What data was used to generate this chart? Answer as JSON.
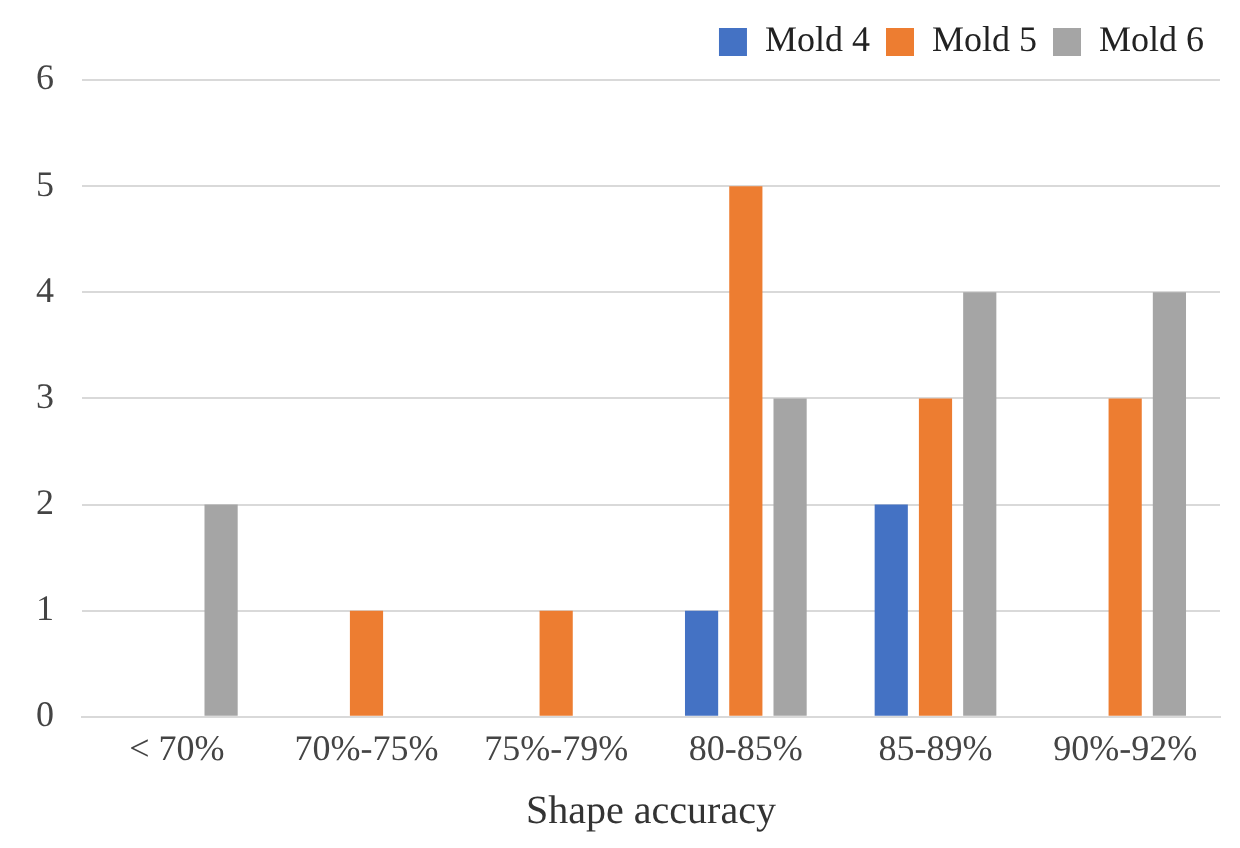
{
  "chart_data": {
    "type": "bar",
    "xlabel": "Shape accuracy",
    "categories": [
      "< 70%",
      "70%-75%",
      "75%-79%",
      "80-85%",
      "85-89%",
      "90%-92%"
    ],
    "series": [
      {
        "name": "Mold 4",
        "color": "#4472c4",
        "values": [
          0,
          0,
          0,
          1,
          2,
          0
        ]
      },
      {
        "name": "Mold 5",
        "color": "#ed7d31",
        "values": [
          0,
          1,
          1,
          5,
          3,
          3
        ]
      },
      {
        "name": "Mold 6",
        "color": "#a5a5a5",
        "values": [
          2,
          0,
          0,
          3,
          4,
          4
        ]
      }
    ],
    "ylim": [
      0,
      6
    ],
    "yticks": [
      0,
      1,
      2,
      3,
      4,
      5,
      6
    ],
    "grid": "y",
    "legend": "top right"
  }
}
